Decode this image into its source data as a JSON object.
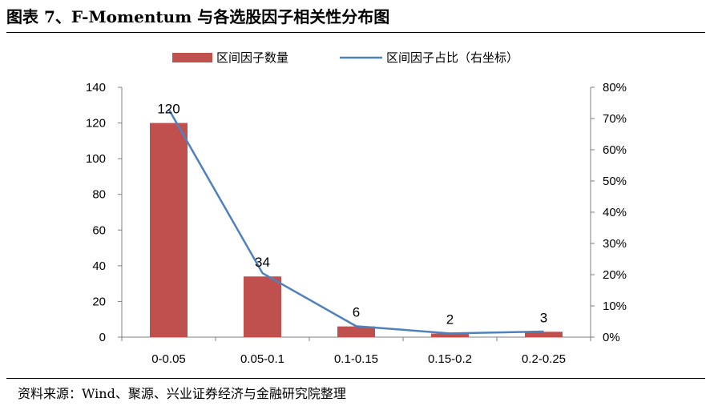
{
  "header": {
    "title": "图表 7、F-Momentum 与各选股因子相关性分布图"
  },
  "footer": {
    "source": "资料来源：Wind、聚源、兴业证券经济与金融研究院整理"
  },
  "colors": {
    "bar": "#c0504d",
    "line": "#4f81bd",
    "axis": "#7f7f7f"
  },
  "chart_data": {
    "type": "bar",
    "categories": [
      "0-0.05",
      "0.05-0.1",
      "0.1-0.15",
      "0.15-0.2",
      "0.2-0.25"
    ],
    "series": [
      {
        "name": "区间因子数量",
        "type": "bar",
        "axis": "left",
        "values": [
          120,
          34,
          6,
          2,
          3
        ],
        "data_labels": [
          "120",
          "34",
          "6",
          "2",
          "3"
        ]
      },
      {
        "name": "区间因子占比（右坐标）",
        "type": "line",
        "axis": "right",
        "values": [
          0.73,
          0.205,
          0.035,
          0.012,
          0.018
        ]
      }
    ],
    "y_left": {
      "min": 0,
      "max": 140,
      "ticks": [
        "0",
        "20",
        "40",
        "60",
        "80",
        "100",
        "120",
        "140"
      ]
    },
    "y_right": {
      "min": 0,
      "max": 0.8,
      "ticks": [
        "0%",
        "10%",
        "20%",
        "30%",
        "40%",
        "50%",
        "60%",
        "70%",
        "80%"
      ]
    },
    "legend": "top",
    "grid": false
  }
}
